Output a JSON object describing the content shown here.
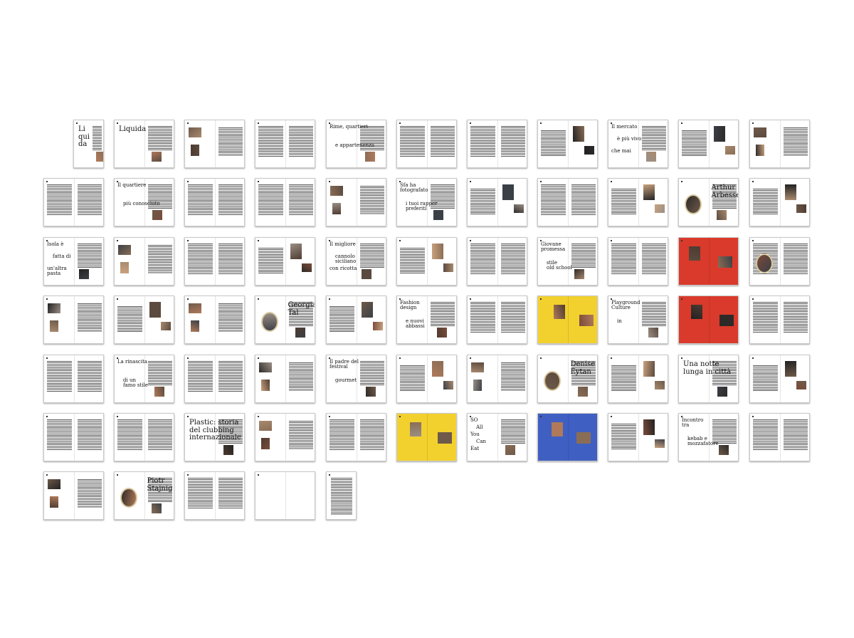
{
  "title": "",
  "colors": {
    "yellow": "#f2d12e",
    "red": "#d93a2b",
    "blue": "#3f5fc2",
    "paper": "#ffffff"
  },
  "rows": [
    {
      "spreads": [
        {
          "id": "r1s1",
          "bg": "white",
          "single": true,
          "captions": [
            "Li\nqui\nda"
          ]
        },
        {
          "id": "r1s2",
          "bg": "white",
          "captions": [
            "Liquida"
          ]
        },
        {
          "id": "r1s3",
          "bg": "white",
          "captions": []
        },
        {
          "id": "r1s4",
          "bg": "white",
          "captions": []
        },
        {
          "id": "r1s5",
          "bg": "white",
          "captions": [
            "Rime, quartieri",
            "e appartenenza"
          ]
        },
        {
          "id": "r1s6",
          "bg": "white",
          "captions": []
        },
        {
          "id": "r1s7",
          "bg": "white",
          "captions": []
        },
        {
          "id": "r1s8",
          "bg": "white",
          "captions": []
        },
        {
          "id": "r1s9",
          "bg": "white",
          "captions": [
            "Il mercato",
            "è più vivo",
            "che mai"
          ]
        },
        {
          "id": "r1s10",
          "bg": "white",
          "captions": []
        },
        {
          "id": "r1s11",
          "bg": "white",
          "captions": []
        }
      ]
    },
    {
      "spreads": [
        {
          "id": "r2s1",
          "bg": "white",
          "captions": []
        },
        {
          "id": "r2s2",
          "bg": "white",
          "captions": [
            "Il quartiere",
            "più conosciuto"
          ]
        },
        {
          "id": "r2s3",
          "bg": "white",
          "captions": []
        },
        {
          "id": "r2s4",
          "bg": "white",
          "captions": []
        },
        {
          "id": "r2s5",
          "bg": "white",
          "captions": []
        },
        {
          "id": "r2s6",
          "bg": "white",
          "captions": [
            "Sfa ha\nfotografato",
            "i tuoi rapper\npreferiti"
          ]
        },
        {
          "id": "r2s7",
          "bg": "white",
          "captions": []
        },
        {
          "id": "r2s8",
          "bg": "white",
          "captions": []
        },
        {
          "id": "r2s9",
          "bg": "white",
          "captions": []
        },
        {
          "id": "r2s10",
          "bg": "white",
          "captions": [
            "Arthur\nArbesser"
          ]
        },
        {
          "id": "r2s11",
          "bg": "white",
          "captions": []
        }
      ]
    },
    {
      "spreads": [
        {
          "id": "r3s1",
          "bg": "white",
          "captions": [
            "Isola è",
            "fatta di",
            "un'altra\npasta"
          ]
        },
        {
          "id": "r3s2",
          "bg": "white",
          "captions": []
        },
        {
          "id": "r3s3",
          "bg": "white",
          "captions": []
        },
        {
          "id": "r3s4",
          "bg": "white",
          "captions": []
        },
        {
          "id": "r3s5",
          "bg": "white",
          "captions": [
            "Il migliore",
            "cannolo\nsiciliano",
            "con ricotta"
          ]
        },
        {
          "id": "r3s6",
          "bg": "white",
          "captions": []
        },
        {
          "id": "r3s7",
          "bg": "white",
          "captions": []
        },
        {
          "id": "r3s8",
          "bg": "white",
          "captions": [
            "Giovane\npromessa",
            "stile\nold school"
          ]
        },
        {
          "id": "r3s9",
          "bg": "white",
          "captions": []
        },
        {
          "id": "r3s10",
          "bg": "red",
          "captions": []
        },
        {
          "id": "r3s11",
          "bg": "white",
          "captions": []
        }
      ]
    },
    {
      "spreads": [
        {
          "id": "r4s1",
          "bg": "white",
          "captions": []
        },
        {
          "id": "r4s2",
          "bg": "white",
          "captions": []
        },
        {
          "id": "r4s3",
          "bg": "white",
          "captions": []
        },
        {
          "id": "r4s4",
          "bg": "white",
          "captions": [
            "Georgia Tal"
          ]
        },
        {
          "id": "r4s5",
          "bg": "white",
          "captions": []
        },
        {
          "id": "r4s6",
          "bg": "white",
          "captions": [
            "Fashion\ndesign",
            "e nuovi\nabbassi"
          ]
        },
        {
          "id": "r4s7",
          "bg": "white",
          "captions": []
        },
        {
          "id": "r4s8",
          "bg": "yellow",
          "captions": []
        },
        {
          "id": "r4s9",
          "bg": "white",
          "captions": [
            "Playground\nCulture",
            "in"
          ]
        },
        {
          "id": "r4s10",
          "bg": "red",
          "captions": []
        },
        {
          "id": "r4s11",
          "bg": "white",
          "captions": []
        }
      ]
    },
    {
      "spreads": [
        {
          "id": "r5s1",
          "bg": "white",
          "captions": []
        },
        {
          "id": "r5s2",
          "bg": "white",
          "captions": [
            "La rinascita",
            "di un\nfamo stile"
          ]
        },
        {
          "id": "r5s3",
          "bg": "white",
          "captions": []
        },
        {
          "id": "r5s4",
          "bg": "white",
          "captions": []
        },
        {
          "id": "r5s5",
          "bg": "white",
          "captions": [
            "Il padre del\nfestival",
            "gourmet"
          ]
        },
        {
          "id": "r5s6",
          "bg": "white",
          "captions": []
        },
        {
          "id": "r5s7",
          "bg": "white",
          "captions": []
        },
        {
          "id": "r5s8",
          "bg": "white",
          "captions": [
            "Denise Eytan"
          ]
        },
        {
          "id": "r5s9",
          "bg": "white",
          "captions": []
        },
        {
          "id": "r5s10",
          "bg": "white",
          "captions": [
            "Una notte\nlunga in città"
          ]
        },
        {
          "id": "r5s11",
          "bg": "white",
          "captions": []
        }
      ]
    },
    {
      "spreads": [
        {
          "id": "r6s1",
          "bg": "white",
          "captions": []
        },
        {
          "id": "r6s2",
          "bg": "white",
          "captions": []
        },
        {
          "id": "r6s3",
          "bg": "white",
          "captions": [
            "Plastic: storia\ndel clubbing\ninternazionale"
          ]
        },
        {
          "id": "r6s4",
          "bg": "white",
          "captions": []
        },
        {
          "id": "r6s5",
          "bg": "white",
          "captions": []
        },
        {
          "id": "r6s6",
          "bg": "yellow",
          "captions": []
        },
        {
          "id": "r6s7",
          "bg": "white",
          "captions": [
            "SO",
            "All",
            "You",
            "Can",
            "Eat"
          ]
        },
        {
          "id": "r6s8",
          "bg": "blue",
          "captions": []
        },
        {
          "id": "r6s9",
          "bg": "white",
          "captions": []
        },
        {
          "id": "r6s10",
          "bg": "white",
          "captions": [
            "Incontro\ntra",
            "kebab e\nmozzafatore"
          ]
        },
        {
          "id": "r6s11",
          "bg": "white",
          "captions": []
        }
      ]
    },
    {
      "spreads": [
        {
          "id": "r7s1",
          "bg": "white",
          "captions": []
        },
        {
          "id": "r7s2",
          "bg": "white",
          "captions": [
            "Piotr Stajnig"
          ]
        },
        {
          "id": "r7s3",
          "bg": "white",
          "captions": []
        },
        {
          "id": "r7s4",
          "bg": "white",
          "captions": []
        },
        {
          "id": "r7s5",
          "bg": "white",
          "single": true,
          "captions": []
        }
      ]
    }
  ]
}
